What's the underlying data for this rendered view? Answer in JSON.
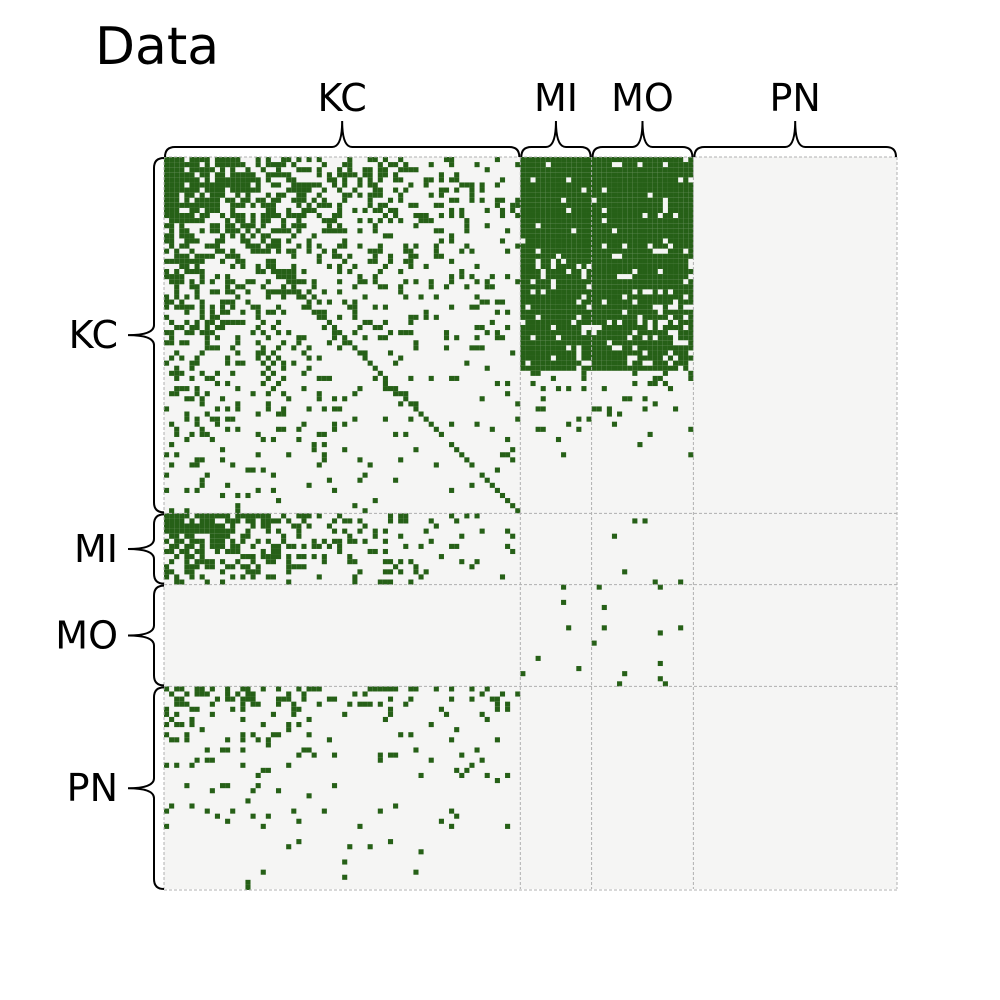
{
  "chart_data": {
    "type": "heatmap",
    "title": "Data",
    "groups": [
      "KC",
      "MI",
      "MO",
      "PN"
    ],
    "group_sizes": [
      70,
      14,
      20,
      40
    ],
    "n_nodes": 144,
    "colors": {
      "edge": "#266017",
      "background": "#f5f5f4",
      "separator": "#b0b0b0"
    },
    "block_density": [
      [
        0.45,
        0.55,
        0.65,
        0.0
      ],
      [
        0.45,
        0.0,
        0.03,
        0.0
      ],
      [
        0.0,
        0.03,
        0.05,
        0.0
      ],
      [
        0.12,
        0.0,
        0.0,
        0.0
      ]
    ],
    "grid": false
  }
}
